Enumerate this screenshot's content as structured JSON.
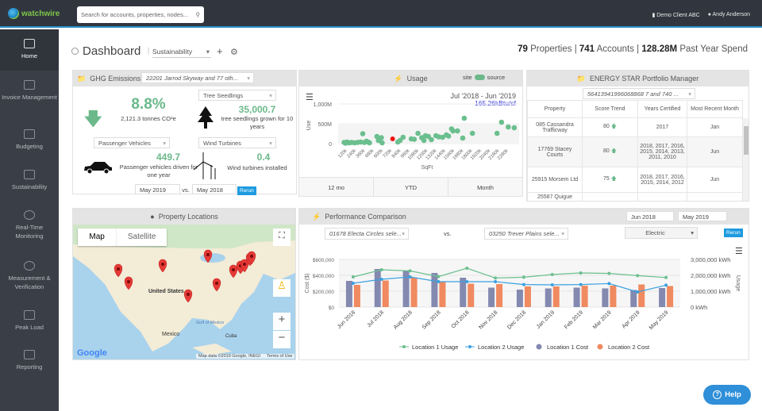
{
  "header": {
    "logo": "watchwire",
    "search_placeholder": "Search for accounts, properties, nodes...",
    "client": "Demo Client ABC",
    "user": "Andy Anderson"
  },
  "sidebar": {
    "items": [
      {
        "label": "Home"
      },
      {
        "label": "Invoice Management"
      },
      {
        "label": "Budgeting"
      },
      {
        "label": "Sustainability"
      },
      {
        "label": "Real-Time Monitoring"
      },
      {
        "label": "Measurement & Verification"
      },
      {
        "label": "Peak Load"
      },
      {
        "label": "Reporting"
      }
    ]
  },
  "page": {
    "title": "Dashboard",
    "dashboard_select": "Sustainability",
    "stats": {
      "properties": "79",
      "properties_label": "Properties",
      "accounts": "741",
      "accounts_label": "Accounts",
      "spend": "128.28M",
      "spend_label": "Past Year Spend"
    }
  },
  "ghg": {
    "title": "GHG Emissions",
    "property_select": "22201 Jarrod Skyway and 77 oth...",
    "percent": "8.8%",
    "tonnes": "2,121.3 tonnes CO²e",
    "tree_select": "Tree Seedlings",
    "tree_value": "35,000.7",
    "tree_caption": "tree seedlings grown for 10 years",
    "vehicle_select": "Passenger Vehicles",
    "vehicle_value": "449.7",
    "vehicle_caption": "Passenger vehicles driven for one year",
    "wind_select": "Wind Turbines",
    "wind_value": "0.4",
    "wind_caption": "Wind turbines installed",
    "date1": "May 2019",
    "vs": "vs.",
    "date2": "May 2018",
    "rerun": "Rerun"
  },
  "usage": {
    "title": "Usage",
    "toggle_left": "site",
    "toggle_right": "source",
    "range": "Jul '2018 - Jun '2019",
    "intensity": "165.26kBtu/sf",
    "tabs": [
      "12 mo",
      "YTD",
      "Month"
    ]
  },
  "energystar": {
    "title": "ENERGY STAR Portfolio Manager",
    "select": "56413941996068868 7 and 740 ...",
    "columns": [
      "Property",
      "Score Trend",
      "Years Certified",
      "Most Recent Month"
    ],
    "rows": [
      {
        "property": "085 Cassandra Trafficway",
        "score": "80",
        "years": "2017",
        "month": "Jan"
      },
      {
        "property": "17769 Stacey Courts",
        "score": "80",
        "years": "2018, 2017, 2016, 2015, 2014, 2013, 2011, 2010",
        "month": "Jun"
      },
      {
        "property": "25915 Morsem Ltd",
        "score": "75",
        "years": "2018, 2017, 2016, 2015, 2014, 2012",
        "month": "Jun"
      },
      {
        "property": "25587 Quigue",
        "score": "",
        "years": "",
        "month": ""
      }
    ]
  },
  "map": {
    "title": "Property Locations",
    "map_btn": "Map",
    "satellite_btn": "Satellite",
    "attribution": "Map data ©2019 Google, INEGI",
    "terms": "Terms of Use",
    "google": "Google",
    "labels": {
      "us": "United States",
      "mexico": "Mexico",
      "gulf": "Gulf of Mexico",
      "cuba": "Cuba"
    }
  },
  "perf": {
    "title": "Performance Comparison",
    "date_from": "Jun 2018",
    "date_to": "May 2019",
    "loc1_select": "01678 Electa Circles sele...",
    "vs": "vs.",
    "loc2_select": "03250 Trever Plains sele...",
    "commodity": "Electric",
    "rerun": "Rerun"
  },
  "help": {
    "label": "Help"
  },
  "chart_data": [
    {
      "type": "scatter",
      "title": "Usage",
      "xlabel": "SqFt",
      "ylabel": "Use",
      "ylim": [
        0,
        1000
      ],
      "y_ticks": [
        "0",
        "500M",
        "1,000M"
      ],
      "x_ticks": [
        "120k",
        "240k",
        "360k",
        "480k",
        "600k",
        "720k",
        "840k",
        "960k",
        "1080k",
        "1200k",
        "1320k",
        "1440k",
        "1560k",
        "1680k",
        "1800k",
        "1920k",
        "2040k",
        "2160k",
        "2280k"
      ],
      "points": [
        [
          80,
          30
        ],
        [
          100,
          10
        ],
        [
          120,
          40
        ],
        [
          150,
          20
        ],
        [
          180,
          30
        ],
        [
          220,
          20
        ],
        [
          260,
          30
        ],
        [
          300,
          40
        ],
        [
          330,
          250
        ],
        [
          350,
          30
        ],
        [
          380,
          60
        ],
        [
          400,
          40
        ],
        [
          420,
          20
        ],
        [
          520,
          180
        ],
        [
          540,
          80
        ],
        [
          580,
          150
        ],
        [
          590,
          20
        ],
        [
          730,
          120,
          "highlight"
        ],
        [
          800,
          40
        ],
        [
          830,
          80
        ],
        [
          870,
          160
        ],
        [
          980,
          120
        ],
        [
          1020,
          110
        ],
        [
          1070,
          260
        ],
        [
          1120,
          150
        ],
        [
          1150,
          80
        ],
        [
          1170,
          200
        ],
        [
          1210,
          180
        ],
        [
          1250,
          100
        ],
        [
          1310,
          200
        ],
        [
          1350,
          170
        ],
        [
          1400,
          160
        ],
        [
          1450,
          220
        ],
        [
          1480,
          190
        ],
        [
          1520,
          370
        ],
        [
          1540,
          320
        ],
        [
          1600,
          320
        ],
        [
          1670,
          140
        ],
        [
          1690,
          640
        ],
        [
          1800,
          260
        ],
        [
          2130,
          260
        ],
        [
          2190,
          540
        ],
        [
          2280,
          420
        ],
        [
          2360,
          400
        ]
      ]
    },
    {
      "type": "bar",
      "title": "Performance Comparison",
      "categories": [
        "Jun 2018",
        "Jul 2018",
        "Aug 2018",
        "Sep 2018",
        "Oct 2018",
        "Nov 2018",
        "Dec 2018",
        "Jan 2019",
        "Feb 2019",
        "Mar 2019",
        "Apr 2019",
        "May 2019"
      ],
      "ylabel": "Cost ($)",
      "y2label": "Usage",
      "ylim": [
        0,
        600000
      ],
      "y2lim": [
        0,
        3000000
      ],
      "y_ticks": [
        "$0",
        "$200,000",
        "$400,000",
        "$600,000"
      ],
      "y2_ticks": [
        "0 kWh",
        "1,000,000 kWh",
        "2,000,000 kWh",
        "3,000,000 kWh"
      ],
      "series": [
        {
          "name": "Location 1 Usage",
          "type": "line",
          "axis": "right",
          "color": "#6bbf8e",
          "values": [
            1900000,
            2350000,
            2280000,
            1920000,
            2450000,
            1830000,
            1880000,
            2050000,
            2150000,
            2120000,
            1980000,
            1860000
          ]
        },
        {
          "name": "Location 2 Usage",
          "type": "line",
          "axis": "right",
          "color": "#3aa0e0",
          "values": [
            1500000,
            1750000,
            1900000,
            1600000,
            1600000,
            1600000,
            1420000,
            1400000,
            1420000,
            1480000,
            950000,
            1380000
          ]
        },
        {
          "name": "Location 1 Cost",
          "type": "bar",
          "axis": "left",
          "color": "#8489b0",
          "values": [
            330000,
            480000,
            455000,
            430000,
            370000,
            245000,
            220000,
            235000,
            245000,
            235000,
            215000,
            240000
          ]
        },
        {
          "name": "Location 2 Cost",
          "type": "bar",
          "axis": "left",
          "color": "#f08a60",
          "values": [
            280000,
            335000,
            370000,
            320000,
            295000,
            290000,
            260000,
            260000,
            270000,
            270000,
            285000,
            265000
          ]
        }
      ]
    }
  ]
}
